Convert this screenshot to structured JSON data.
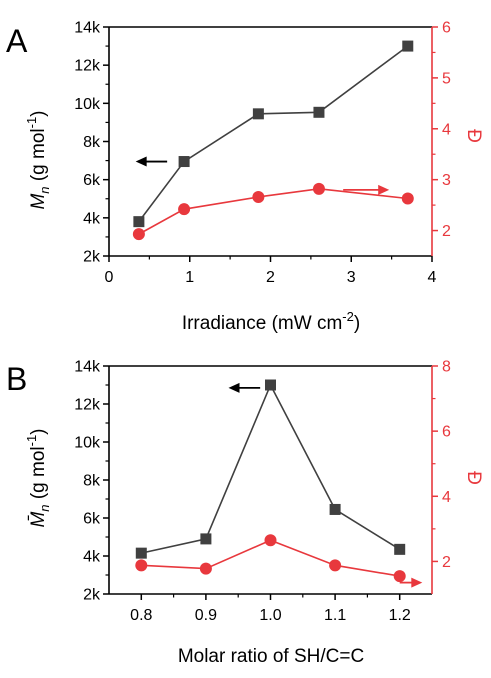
{
  "colors": {
    "left_series": "#404040",
    "right_series": "#e8383d",
    "axis": "#000000"
  },
  "chart_data": [
    {
      "panel_label": "A",
      "type": "line",
      "xlabel": "Irradiance (mW cm",
      "xlabel_sup": "-2",
      "xlabel_end": ")",
      "ylabel_italic": "M",
      "ylabel_sub": "n",
      "ylabel_rest": " (g mol",
      "ylabel_sup": "-1",
      "ylabel_end": ")",
      "y2label": "Đ",
      "xlim": [
        0,
        4
      ],
      "ylim": [
        2000,
        14000
      ],
      "y2lim": [
        1.5,
        6
      ],
      "x_ticks": [
        0,
        1,
        2,
        3,
        4
      ],
      "x_tick_labels": [
        "0",
        "1",
        "2",
        "3",
        "4"
      ],
      "y_ticks": [
        2000,
        4000,
        6000,
        8000,
        10000,
        12000,
        14000
      ],
      "y_tick_labels": [
        "2k",
        "4k",
        "6k",
        "8k",
        "10k",
        "12k",
        "14k"
      ],
      "y2_ticks": [
        2,
        3,
        4,
        5,
        6
      ],
      "y2_tick_labels": [
        "2",
        "3",
        "4",
        "5",
        "6"
      ],
      "series": [
        {
          "axis": "left",
          "marker": "square",
          "x": [
            0.37,
            0.93,
            1.85,
            2.6,
            3.7
          ],
          "values": [
            3800,
            6950,
            9450,
            9530,
            13000
          ]
        },
        {
          "axis": "right",
          "marker": "circle",
          "x": [
            0.37,
            0.93,
            1.85,
            2.6,
            3.7
          ],
          "values": [
            1.93,
            2.42,
            2.66,
            2.82,
            2.63
          ]
        }
      ],
      "arrows": [
        {
          "direction": "left",
          "axis": "left",
          "from": [
            0.72,
            6950
          ],
          "to": [
            0.33,
            6950
          ]
        },
        {
          "direction": "right",
          "axis": "right",
          "from": [
            2.9,
            2.8
          ],
          "to": [
            3.47,
            2.8
          ]
        }
      ]
    },
    {
      "panel_label": "B",
      "type": "line",
      "xlabel": "Molar ratio of SH/C=C",
      "ylabel_italic": "M̄",
      "ylabel_sub": "n",
      "ylabel_rest": " (g mol",
      "ylabel_sup": "-1",
      "ylabel_end": ")",
      "y2label": "Đ",
      "xlim": [
        0.75,
        1.25
      ],
      "ylim": [
        2000,
        14000
      ],
      "y2lim": [
        1,
        8
      ],
      "x_ticks": [
        0.8,
        0.9,
        1.0,
        1.1,
        1.2
      ],
      "x_tick_labels": [
        "0.8",
        "0.9",
        "1.0",
        "1.1",
        "1.2"
      ],
      "y_ticks": [
        2000,
        4000,
        6000,
        8000,
        10000,
        12000,
        14000
      ],
      "y_tick_labels": [
        "2k",
        "4k",
        "6k",
        "8k",
        "10k",
        "12k",
        "14k"
      ],
      "y2_ticks": [
        2,
        4,
        6,
        8
      ],
      "y2_tick_labels": [
        "2",
        "4",
        "6",
        "8"
      ],
      "series": [
        {
          "axis": "left",
          "marker": "square",
          "x": [
            0.8,
            0.9,
            1.0,
            1.1,
            1.2
          ],
          "values": [
            4150,
            4900,
            13000,
            6450,
            4350
          ]
        },
        {
          "axis": "right",
          "marker": "circle",
          "x": [
            0.8,
            0.9,
            1.0,
            1.1,
            1.2
          ],
          "values": [
            1.88,
            1.78,
            2.65,
            1.88,
            1.55
          ]
        }
      ],
      "arrows": [
        {
          "direction": "left",
          "axis": "left",
          "from": [
            0.984,
            12850
          ],
          "to": [
            0.935,
            12850
          ]
        },
        {
          "direction": "right",
          "axis": "right",
          "from": [
            1.2,
            1.35
          ],
          "to": [
            1.235,
            1.35
          ]
        }
      ]
    }
  ]
}
